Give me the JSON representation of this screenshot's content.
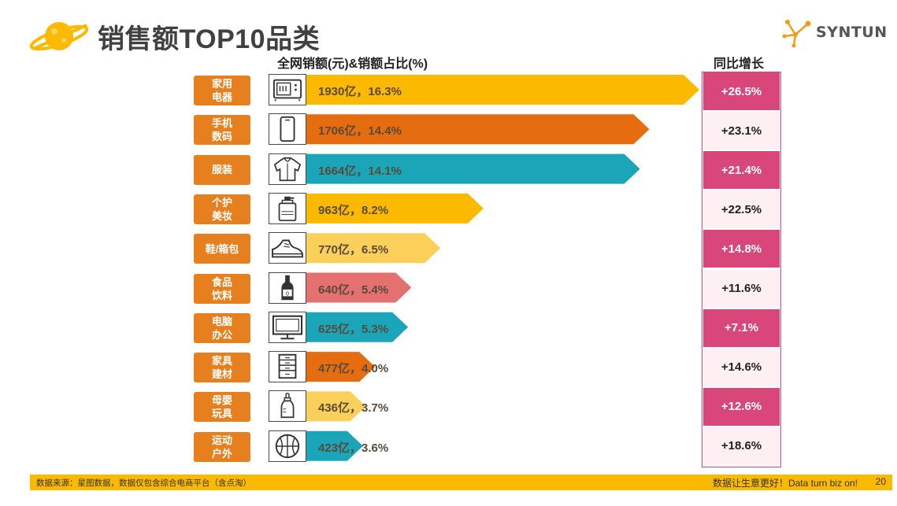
{
  "header": {
    "title": "销售额TOP10品类",
    "logo_text": "SYNTUN"
  },
  "columns": {
    "sales_header": "全网销额(元)&销额占比(%)",
    "yoy_header": "同比增长"
  },
  "chart_data": {
    "type": "bar",
    "orientation": "horizontal",
    "title": "销售额TOP10品类",
    "xlabel": "全网销额(元)&销额占比(%)",
    "unit": "亿",
    "categories": [
      {
        "label": "家用电器",
        "lines": [
          "家用",
          "电器"
        ],
        "value": 1930,
        "share": 16.3,
        "bar_text": "1930亿，16.3%",
        "yoy": "+26.5%",
        "color": "#fbb900",
        "icon": "microwave-icon"
      },
      {
        "label": "手机数码",
        "lines": [
          "手机",
          "数码"
        ],
        "value": 1706,
        "share": 14.4,
        "bar_text": "1706亿，14.4%",
        "yoy": "+23.1%",
        "color": "#e66c10",
        "icon": "phone-icon"
      },
      {
        "label": "服装",
        "lines": [
          "服装"
        ],
        "value": 1664,
        "share": 14.1,
        "bar_text": "1664亿，14.1%",
        "yoy": "+21.4%",
        "color": "#1aa5b8",
        "icon": "hoodie-icon"
      },
      {
        "label": "个护美妆",
        "lines": [
          "个护",
          "美妆"
        ],
        "value": 963,
        "share": 8.2,
        "bar_text": "963亿，8.2%",
        "yoy": "+22.5%",
        "color": "#fbb900",
        "icon": "lotion-bottle-icon"
      },
      {
        "label": "鞋/箱包",
        "lines": [
          "鞋/箱包"
        ],
        "value": 770,
        "share": 6.5,
        "bar_text": "770亿，6.5%",
        "yoy": "+14.8%",
        "color": "#fbd05a",
        "icon": "sneaker-icon"
      },
      {
        "label": "食品饮料",
        "lines": [
          "食品",
          "饮料"
        ],
        "value": 640,
        "share": 5.4,
        "bar_text": "640亿，5.4%",
        "yoy": "+11.6%",
        "color": "#e57070",
        "icon": "drink-bottle-icon"
      },
      {
        "label": "电脑办公",
        "lines": [
          "电脑",
          "办公"
        ],
        "value": 625,
        "share": 5.3,
        "bar_text": "625亿，5.3%",
        "yoy": "+7.1%",
        "color": "#1aa5b8",
        "icon": "monitor-icon"
      },
      {
        "label": "家具建材",
        "lines": [
          "家具",
          "建材"
        ],
        "value": 477,
        "share": 4.0,
        "bar_text": "477亿，4.0%",
        "yoy": "+14.6%",
        "color": "#e66c10",
        "icon": "drawer-cabinet-icon"
      },
      {
        "label": "母婴玩具",
        "lines": [
          "母婴",
          "玩具"
        ],
        "value": 436,
        "share": 3.7,
        "bar_text": "436亿，3.7%",
        "yoy": "+12.6%",
        "color": "#fbd05a",
        "icon": "baby-bottle-icon"
      },
      {
        "label": "运动户外",
        "lines": [
          "运动",
          "户外"
        ],
        "value": 423,
        "share": 3.6,
        "bar_text": "423亿，3.6%",
        "yoy": "+18.6%",
        "color": "#1aa5b8",
        "icon": "basketball-icon"
      }
    ],
    "yoy_header": "同比增长",
    "yoy_colors": {
      "highlight": "#d9477a",
      "light": "#fdeff2"
    },
    "grid": false,
    "legend": "none"
  },
  "footer": {
    "source": "数据来源：星图数据，数据仅包含综合电商平台（含点淘）",
    "slogan": "数据让生意更好！Data turn biz on!",
    "page": "20"
  },
  "colors": {
    "accent": "#fbb900",
    "label_bg": "#e6801e",
    "pink": "#d9477a"
  }
}
